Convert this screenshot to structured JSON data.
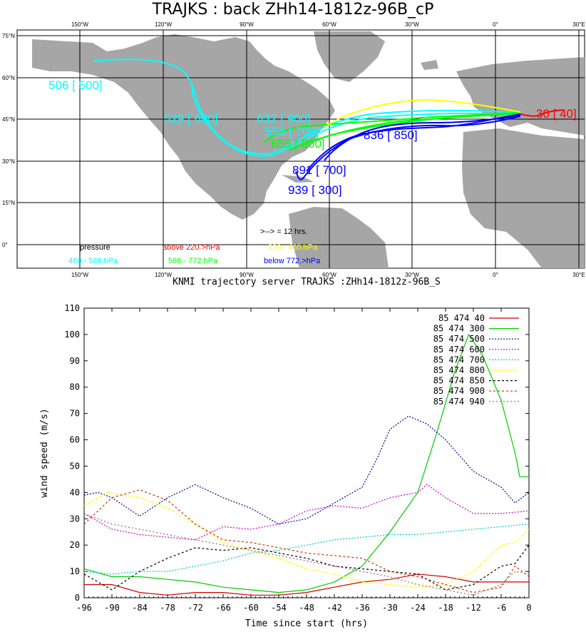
{
  "title": "TRAJKS : back ZHh14-1812z-96B_cP",
  "server_caption": "KNMI trajectory server TRAJKS :ZHh14-1812z-96B_S",
  "map": {
    "lon_ticks": [
      "150°W",
      "120°W",
      "90°W",
      "60°W",
      "30°W",
      "0°",
      "30°E"
    ],
    "lat_ticks": [
      "75°N",
      "60°N",
      "45°N",
      "30°N",
      "15°N",
      "0°"
    ],
    "arrow_note": ">--> = 12 hrs.",
    "legend": [
      {
        "text": "pressure",
        "color": "#000000"
      },
      {
        "text": "above  220.>hPa",
        "color": "#ff0000"
      },
      {
        "text": "220.-  460.hPa",
        "color": "#ffff00"
      },
      {
        "text": "460.-  586.hPa",
        "color": "#00ffff"
      },
      {
        "text": "586.-  772.hPa",
        "color": "#00ff00"
      },
      {
        "text": "below  772.>hPa",
        "color": "#0000ff"
      }
    ],
    "labels": [
      {
        "text": "30 [  40]",
        "color": "#ff0000"
      },
      {
        "text": "506 [ 500]",
        "color": "#00ffff"
      },
      {
        "text": "529 [ 600]",
        "color": "#00ffff"
      },
      {
        "text": "632 [ 900]",
        "color": "#00ffff"
      },
      {
        "text": "555 [ 700]",
        "color": "#00ffff"
      },
      {
        "text": "655 [ 800]",
        "color": "#00ff00"
      },
      {
        "text": "836 [ 850]",
        "color": "#0000ff"
      },
      {
        "text": "891 [ 700]",
        "color": "#0000ff"
      },
      {
        "text": "939 [ 300]",
        "color": "#0000ff"
      }
    ]
  },
  "chart_data": {
    "type": "line",
    "xlabel": "Time since start (hrs)",
    "ylabel": "wind speed (m/s)",
    "xlim": [
      -96,
      0
    ],
    "ylim": [
      0,
      110
    ],
    "x_ticks": [
      -96,
      -90,
      -84,
      -78,
      -72,
      -66,
      -60,
      -54,
      -48,
      -42,
      -36,
      -30,
      -24,
      -18,
      -12,
      -6,
      0
    ],
    "y_ticks": [
      0,
      10,
      20,
      30,
      40,
      50,
      60,
      70,
      80,
      90,
      100,
      110
    ],
    "grid": false,
    "legend_position": "top-right",
    "series": [
      {
        "name": "85 474 40",
        "color": "#cc0000",
        "dash": "",
        "points": [
          [
            -96,
            5
          ],
          [
            -90,
            5
          ],
          [
            -84,
            2
          ],
          [
            -78,
            1
          ],
          [
            -72,
            2
          ],
          [
            -66,
            2
          ],
          [
            -60,
            1
          ],
          [
            -54,
            1
          ],
          [
            -48,
            2
          ],
          [
            -42,
            4
          ],
          [
            -36,
            6
          ],
          [
            -30,
            7
          ],
          [
            -24,
            9
          ],
          [
            -18,
            8
          ],
          [
            -12,
            6
          ],
          [
            -6,
            6
          ],
          [
            0,
            6
          ]
        ]
      },
      {
        "name": "85 474 300",
        "color": "#00cc00",
        "dash": "",
        "points": [
          [
            -96,
            11
          ],
          [
            -90,
            8
          ],
          [
            -84,
            8
          ],
          [
            -78,
            7
          ],
          [
            -72,
            6
          ],
          [
            -66,
            4
          ],
          [
            -60,
            3
          ],
          [
            -54,
            2
          ],
          [
            -48,
            3
          ],
          [
            -42,
            6
          ],
          [
            -36,
            12
          ],
          [
            -30,
            25
          ],
          [
            -24,
            40
          ],
          [
            -20,
            62
          ],
          [
            -16,
            86
          ],
          [
            -13,
            100
          ],
          [
            -10,
            92
          ],
          [
            -6,
            75
          ],
          [
            -3,
            55
          ],
          [
            -2,
            46
          ],
          [
            0,
            46
          ]
        ]
      },
      {
        "name": "85 474 500",
        "color": "#000099",
        "dash": "2,2",
        "points": [
          [
            -96,
            39
          ],
          [
            -93,
            40
          ],
          [
            -90,
            38
          ],
          [
            -84,
            31
          ],
          [
            -78,
            38
          ],
          [
            -72,
            43
          ],
          [
            -66,
            38
          ],
          [
            -60,
            34
          ],
          [
            -54,
            28
          ],
          [
            -48,
            30
          ],
          [
            -42,
            36
          ],
          [
            -36,
            42
          ],
          [
            -33,
            52
          ],
          [
            -30,
            64
          ],
          [
            -26,
            69
          ],
          [
            -22,
            66
          ],
          [
            -18,
            60
          ],
          [
            -12,
            48
          ],
          [
            -6,
            42
          ],
          [
            -3,
            36
          ],
          [
            0,
            40
          ]
        ]
      },
      {
        "name": "85 474 600",
        "color": "#cc00cc",
        "dash": "2,2",
        "points": [
          [
            -96,
            32
          ],
          [
            -90,
            26
          ],
          [
            -84,
            24
          ],
          [
            -78,
            23
          ],
          [
            -72,
            22
          ],
          [
            -66,
            27
          ],
          [
            -60,
            26
          ],
          [
            -54,
            28
          ],
          [
            -48,
            33
          ],
          [
            -42,
            35
          ],
          [
            -36,
            34
          ],
          [
            -30,
            38
          ],
          [
            -24,
            40
          ],
          [
            -22,
            43
          ],
          [
            -18,
            38
          ],
          [
            -12,
            32
          ],
          [
            -6,
            32
          ],
          [
            0,
            33
          ]
        ]
      },
      {
        "name": "85 474 700",
        "color": "#00cccc",
        "dash": "2,2",
        "points": [
          [
            -96,
            10
          ],
          [
            -90,
            9
          ],
          [
            -84,
            10
          ],
          [
            -78,
            10
          ],
          [
            -72,
            12
          ],
          [
            -66,
            14
          ],
          [
            -60,
            17
          ],
          [
            -54,
            18
          ],
          [
            -48,
            20
          ],
          [
            -42,
            22
          ],
          [
            -36,
            23
          ],
          [
            -30,
            24
          ],
          [
            -24,
            24
          ],
          [
            -18,
            25
          ],
          [
            -12,
            26
          ],
          [
            -6,
            27
          ],
          [
            0,
            28
          ]
        ]
      },
      {
        "name": "85 474 800",
        "color": "#ffff00",
        "dash": "4,2",
        "points": [
          [
            -96,
            35
          ],
          [
            -91,
            40
          ],
          [
            -84,
            38
          ],
          [
            -78,
            34
          ],
          [
            -72,
            28
          ],
          [
            -66,
            21
          ],
          [
            -60,
            18
          ],
          [
            -54,
            15
          ],
          [
            -48,
            11
          ],
          [
            -42,
            9
          ],
          [
            -36,
            6
          ],
          [
            -30,
            5
          ],
          [
            -24,
            4
          ],
          [
            -18,
            5
          ],
          [
            -12,
            10
          ],
          [
            -9,
            15
          ],
          [
            -6,
            20
          ],
          [
            -3,
            21
          ],
          [
            0,
            26
          ]
        ]
      },
      {
        "name": "85 474 850",
        "color": "#000000",
        "dash": "3,3",
        "points": [
          [
            -96,
            9
          ],
          [
            -90,
            3
          ],
          [
            -84,
            10
          ],
          [
            -78,
            15
          ],
          [
            -72,
            19
          ],
          [
            -66,
            18
          ],
          [
            -60,
            19
          ],
          [
            -54,
            17
          ],
          [
            -48,
            15
          ],
          [
            -42,
            12
          ],
          [
            -36,
            11
          ],
          [
            -30,
            10
          ],
          [
            -24,
            9
          ],
          [
            -18,
            3
          ],
          [
            -12,
            5
          ],
          [
            -6,
            12
          ],
          [
            -3,
            13
          ],
          [
            0,
            20
          ]
        ]
      },
      {
        "name": "85 474 900",
        "color": "#cc3300",
        "dash": "3,3",
        "points": [
          [
            -96,
            28
          ],
          [
            -90,
            38
          ],
          [
            -84,
            41
          ],
          [
            -78,
            37
          ],
          [
            -72,
            28
          ],
          [
            -66,
            22
          ],
          [
            -60,
            21
          ],
          [
            -54,
            19
          ],
          [
            -48,
            17
          ],
          [
            -42,
            16
          ],
          [
            -36,
            15
          ],
          [
            -30,
            10
          ],
          [
            -24,
            8
          ],
          [
            -18,
            5
          ],
          [
            -12,
            2
          ],
          [
            -6,
            4
          ],
          [
            -3,
            12
          ],
          [
            0,
            8
          ]
        ]
      },
      {
        "name": "85 474 940",
        "color": "#996666",
        "dash": "2,3",
        "points": [
          [
            -96,
            32
          ],
          [
            -93,
            30
          ],
          [
            -90,
            28
          ],
          [
            -84,
            26
          ],
          [
            -78,
            24
          ],
          [
            -72,
            22
          ],
          [
            -66,
            20
          ],
          [
            -60,
            18
          ],
          [
            -54,
            16
          ],
          [
            -48,
            14
          ],
          [
            -42,
            12
          ],
          [
            -36,
            10
          ],
          [
            -30,
            8
          ],
          [
            -24,
            5
          ],
          [
            -18,
            3
          ],
          [
            -12,
            1
          ],
          [
            -6,
            5
          ],
          [
            -3,
            10
          ],
          [
            0,
            9
          ]
        ]
      }
    ]
  }
}
